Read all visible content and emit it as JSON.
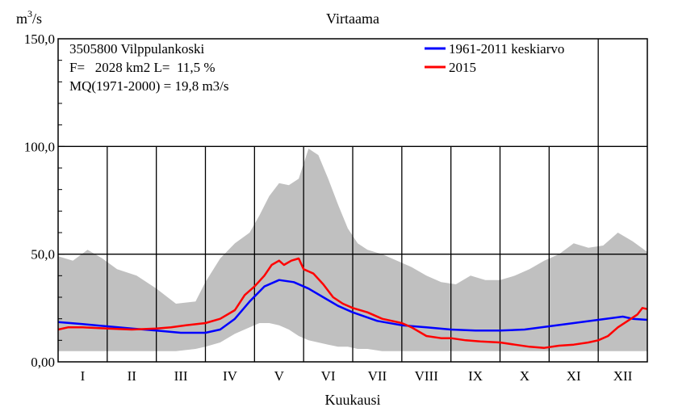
{
  "chart_data": {
    "type": "line",
    "title": "Virtaama",
    "ylabel_base": "m",
    "ylabel_sup": "3",
    "ylabel_rest": "/s",
    "xlabel": "Kuukausi",
    "ylim": [
      0,
      150
    ],
    "xlim": [
      0,
      12
    ],
    "yticks": [
      0,
      50,
      100,
      150
    ],
    "ytick_labels": [
      "0,00",
      "50,0",
      "100,0",
      "150,0"
    ],
    "months": [
      "I",
      "II",
      "III",
      "IV",
      "V",
      "VI",
      "VII",
      "VIII",
      "IX",
      "X",
      "XI",
      "XII"
    ],
    "info": [
      "3505800 Vilppulankoski",
      "F=   2028 km2 L=  11,5 %",
      "MQ(1971-2000) = 19,8 m3/s"
    ],
    "legend": [
      {
        "label": "1961-2011 keskiarvo",
        "color": "#0000ff"
      },
      {
        "label": "2015",
        "color": "#ff0000"
      }
    ],
    "colors": {
      "range": "#c0c0c0",
      "mean": "#0000ff",
      "year": "#ff0000",
      "grid": "#000000"
    },
    "range_band": {
      "x": [
        0,
        0.3,
        0.6,
        0.9,
        1.2,
        1.6,
        2.0,
        2.4,
        2.8,
        3.0,
        3.3,
        3.6,
        3.9,
        4.1,
        4.3,
        4.5,
        4.7,
        4.9,
        5.1,
        5.3,
        5.5,
        5.7,
        5.9,
        6.1,
        6.3,
        6.6,
        6.9,
        7.2,
        7.5,
        7.8,
        8.1,
        8.4,
        8.7,
        9.0,
        9.3,
        9.6,
        9.9,
        10.2,
        10.5,
        10.8,
        11.1,
        11.4,
        11.7,
        12.0
      ],
      "upper": [
        49,
        47,
        52,
        48,
        43,
        40,
        34,
        27,
        28,
        37,
        48,
        55,
        60,
        68,
        77,
        83,
        82,
        85,
        99,
        96,
        85,
        73,
        62,
        55,
        52,
        50,
        47,
        44,
        40,
        37,
        36,
        40,
        38,
        38,
        40,
        43,
        47,
        50,
        55,
        53,
        54,
        60,
        56,
        51
      ],
      "lower": [
        5,
        5,
        5,
        5,
        5,
        5,
        5,
        5,
        6,
        7,
        9,
        13,
        16,
        18,
        18,
        17,
        15,
        12,
        10,
        9,
        8,
        7,
        7,
        6,
        6,
        5,
        5,
        5,
        5,
        5,
        5,
        5,
        5,
        5,
        5,
        5,
        5,
        5,
        5,
        5,
        5,
        5,
        5,
        5
      ]
    },
    "series": [
      {
        "name": "1961-2011 keskiarvo",
        "x": [
          0,
          0.5,
          1.0,
          1.5,
          2.0,
          2.5,
          3.0,
          3.3,
          3.6,
          3.9,
          4.2,
          4.5,
          4.8,
          5.1,
          5.4,
          5.7,
          6.0,
          6.5,
          7.0,
          7.5,
          8.0,
          8.5,
          9.0,
          9.5,
          10.0,
          10.5,
          11.0,
          11.5,
          11.7,
          12.0
        ],
        "values": [
          18.5,
          17.5,
          16.5,
          15.5,
          14.5,
          13.5,
          13.5,
          15,
          20,
          28,
          35,
          38,
          37,
          34,
          30,
          26,
          23,
          19,
          17,
          16,
          15,
          14.5,
          14.5,
          15,
          16.5,
          18,
          19.5,
          21,
          20,
          19.5
        ]
      },
      {
        "name": "2015",
        "x": [
          0,
          0.2,
          0.5,
          1.0,
          1.5,
          2.0,
          2.3,
          2.6,
          3.0,
          3.3,
          3.6,
          3.8,
          4.0,
          4.2,
          4.35,
          4.5,
          4.6,
          4.75,
          4.9,
          5.0,
          5.2,
          5.4,
          5.6,
          5.8,
          6.0,
          6.3,
          6.6,
          7.0,
          7.2,
          7.5,
          7.8,
          8.0,
          8.3,
          8.6,
          9.0,
          9.3,
          9.6,
          9.9,
          10.2,
          10.5,
          10.8,
          11.0,
          11.2,
          11.4,
          11.6,
          11.8,
          11.9,
          12.0
        ],
        "values": [
          15,
          16,
          16,
          15.5,
          15,
          15.5,
          16,
          17,
          18,
          20,
          24,
          31,
          35,
          40,
          45,
          47,
          45,
          47,
          48,
          43,
          41,
          36,
          30,
          27,
          25,
          23,
          20,
          18,
          16,
          12,
          11,
          11,
          10,
          9.5,
          9,
          8,
          7,
          6.5,
          7.5,
          8,
          9,
          10,
          12,
          16,
          19,
          22,
          25,
          24.5
        ]
      }
    ]
  }
}
